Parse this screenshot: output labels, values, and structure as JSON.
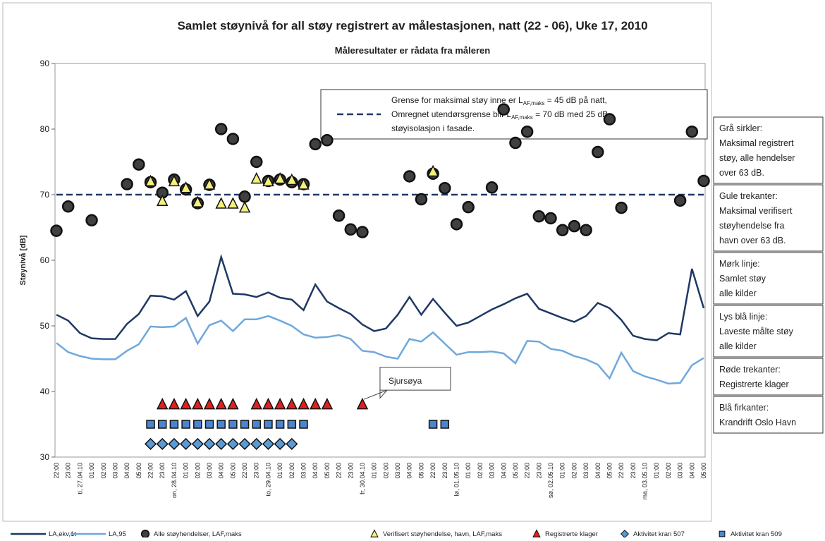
{
  "chart_data": {
    "type": "line",
    "title": "Samlet støynivå for all støy registrert av målestasjonen, natt (22 - 06),  Uke 17, 2010",
    "subtitle": "Måleresultater er rådata fra måleren",
    "y_label": "Støynivå [dB]",
    "ylim": [
      30,
      90
    ],
    "yticks": [
      30,
      40,
      50,
      60,
      70,
      80,
      90
    ],
    "categories": [
      "22:00",
      "23:00",
      "ti, 27.04.10",
      "01:00",
      "02:00",
      "03:00",
      "04:00",
      "05:00",
      "22:00",
      "23:00",
      "on, 28.04.10",
      "01:00",
      "02:00",
      "03:00",
      "04:00",
      "05:00",
      "22:00",
      "23:00",
      "to, 29.04.10",
      "01:00",
      "02:00",
      "03:00",
      "04:00",
      "05:00",
      "22:00",
      "23:00",
      "fr, 30.04.10",
      "01:00",
      "02:00",
      "03:00",
      "04:00",
      "05:00",
      "22:00",
      "23:00",
      "lø, 01.05.10",
      "01:00",
      "02:00",
      "03:00",
      "04:00",
      "05:00",
      "22:00",
      "23:00",
      "sø, 02.05.10",
      "01:00",
      "02:00",
      "03:00",
      "04:00",
      "05:00",
      "22:00",
      "23:00",
      "ma, 03.05.10",
      "01:00",
      "02:00",
      "03:00",
      "04:00",
      "05:00"
    ],
    "series": [
      {
        "name": "LA,ekv,1t",
        "color": "#1f3864",
        "marker": "line",
        "values": [
          51.7,
          50.8,
          48.9,
          48.1,
          48.0,
          48.0,
          50.3,
          51.8,
          54.6,
          54.5,
          54.0,
          55.3,
          51.5,
          53.7,
          60.5,
          54.9,
          54.8,
          54.4,
          55.1,
          54.3,
          54.0,
          52.4,
          56.3,
          53.7,
          52.7,
          51.8,
          50.2,
          49.2,
          49.6,
          51.7,
          54.4,
          51.7,
          54.1,
          52.0,
          50.0,
          50.5,
          51.5,
          52.5,
          53.3,
          54.2,
          54.9,
          52.6,
          51.9,
          51.2,
          50.6,
          51.5,
          53.5,
          52.7,
          50.9,
          48.5,
          48.0,
          47.8,
          48.9,
          48.7,
          58.7,
          52.7
        ]
      },
      {
        "name": "LA,95",
        "color": "#6fa8dc",
        "marker": "line",
        "values": [
          47.4,
          46.0,
          45.4,
          45.0,
          44.9,
          44.9,
          46.2,
          47.2,
          49.9,
          49.8,
          49.9,
          51.2,
          47.3,
          50.1,
          50.8,
          49.2,
          51.0,
          51.0,
          51.5,
          50.8,
          50.0,
          48.7,
          48.2,
          48.3,
          48.6,
          48.0,
          46.2,
          46.0,
          45.3,
          45.0,
          48.0,
          47.6,
          49.0,
          47.3,
          45.6,
          46.0,
          46.0,
          46.1,
          45.8,
          44.3,
          47.7,
          47.6,
          46.5,
          46.2,
          45.4,
          44.9,
          44.1,
          42.0,
          45.9,
          43.1,
          42.3,
          41.8,
          41.2,
          41.3,
          44.0,
          45.1
        ]
      },
      {
        "name": "Alle støyhendelser, LAF,maks",
        "color": "#404040",
        "marker": "circle",
        "values": [
          64.5,
          68.2,
          null,
          66.1,
          null,
          null,
          71.6,
          74.6,
          71.9,
          70.3,
          72.3,
          70.8,
          68.7,
          71.5,
          80.0,
          78.5,
          69.7,
          75.0,
          72.1,
          72.3,
          71.9,
          71.6,
          77.7,
          78.3,
          66.8,
          64.7,
          64.3,
          null,
          null,
          null,
          72.8,
          69.3,
          73.2,
          71.0,
          65.5,
          68.1,
          null,
          71.1,
          83.0,
          77.9,
          79.6,
          66.7,
          66.4,
          64.6,
          65.2,
          64.6,
          76.5,
          81.5,
          68.0,
          null,
          null,
          null,
          null,
          69.1,
          79.6,
          72.1
        ]
      },
      {
        "name": "Verifisert støyhendelse, havn, LAF,maks",
        "color": "#f5f07a",
        "marker": "triangle",
        "values": [
          null,
          null,
          null,
          null,
          null,
          null,
          null,
          null,
          72.0,
          69.0,
          72.0,
          71.0,
          68.8,
          71.5,
          68.6,
          68.6,
          68.0,
          72.4,
          72.0,
          72.4,
          72.2,
          71.5,
          null,
          null,
          null,
          null,
          null,
          null,
          null,
          null,
          null,
          null,
          73.5,
          null,
          null,
          null,
          null,
          null,
          null,
          null,
          null,
          null,
          null,
          null,
          null,
          null,
          null,
          null,
          null,
          null,
          null,
          null,
          null,
          null,
          null,
          null
        ]
      },
      {
        "name": "Registrerte klager",
        "color": "#e02020",
        "marker": "triangle",
        "values": [
          null,
          null,
          null,
          null,
          null,
          null,
          null,
          null,
          null,
          38,
          38,
          38,
          38,
          38,
          38,
          38,
          null,
          38,
          38,
          38,
          38,
          38,
          38,
          38,
          null,
          null,
          38,
          null,
          null,
          null,
          null,
          null,
          null,
          null,
          null,
          null,
          null,
          null,
          null,
          null,
          null,
          null,
          null,
          null,
          null,
          null,
          null,
          null,
          null,
          null,
          null,
          null,
          null,
          null,
          null,
          null
        ]
      },
      {
        "name": "Aktivitet kran 507",
        "color": "#5b9bd5",
        "marker": "diamond",
        "values": [
          null,
          null,
          null,
          null,
          null,
          null,
          null,
          null,
          32,
          32,
          32,
          32,
          32,
          32,
          32,
          32,
          32,
          32,
          32,
          32,
          32,
          null,
          null,
          null,
          null,
          null,
          null,
          null,
          null,
          null,
          null,
          null,
          null,
          null,
          null,
          null,
          null,
          null,
          null,
          null,
          null,
          null,
          null,
          null,
          null,
          null,
          null,
          null,
          null,
          null,
          null,
          null,
          null,
          null,
          null,
          null
        ]
      },
      {
        "name": "Aktivitet kran 509",
        "color": "#4a86d0",
        "marker": "square",
        "values": [
          null,
          null,
          null,
          null,
          null,
          null,
          null,
          null,
          35,
          35,
          35,
          35,
          35,
          35,
          35,
          35,
          35,
          35,
          35,
          35,
          35,
          35,
          null,
          null,
          null,
          null,
          null,
          null,
          null,
          null,
          null,
          null,
          35,
          35,
          null,
          null,
          null,
          null,
          null,
          null,
          null,
          null,
          null,
          null,
          null,
          null,
          null,
          null,
          null,
          null,
          null,
          null,
          null,
          null,
          null,
          null
        ]
      }
    ],
    "ref_line": {
      "value": 70,
      "color": "#1f3864"
    },
    "ref_note": [
      {
        "text": "Grense for maksimal støy inne er L",
        "sub": "AF,maks",
        "after": " = 45 dB på natt,"
      },
      {
        "text": "Omregnet utendørsgrense blir L",
        "sub": "AF,maks",
        "after": " = 70 dB med 25 dB"
      },
      {
        "text": "støyisolasjon i fasade."
      }
    ],
    "callout": {
      "text": "Sjursøya",
      "index": 26
    },
    "side_notes": [
      [
        "Grå sirkler:",
        "Maksimal registrert",
        "støy, alle hendelser",
        "over  63 dB."
      ],
      [
        "Gule trekanter:",
        "Maksimal verifisert",
        "støyhendelse fra",
        "havn over 63 dB."
      ],
      [
        "Mørk linje:",
        "Samlet støy",
        "alle kilder"
      ],
      [
        "Lys blå linje:",
        "Laveste målte støy",
        "alle kilder"
      ],
      [
        "Røde trekanter:",
        "Registrerte klager"
      ],
      [
        "Blå firkanter:",
        "Krandrift Oslo Havn"
      ]
    ]
  }
}
